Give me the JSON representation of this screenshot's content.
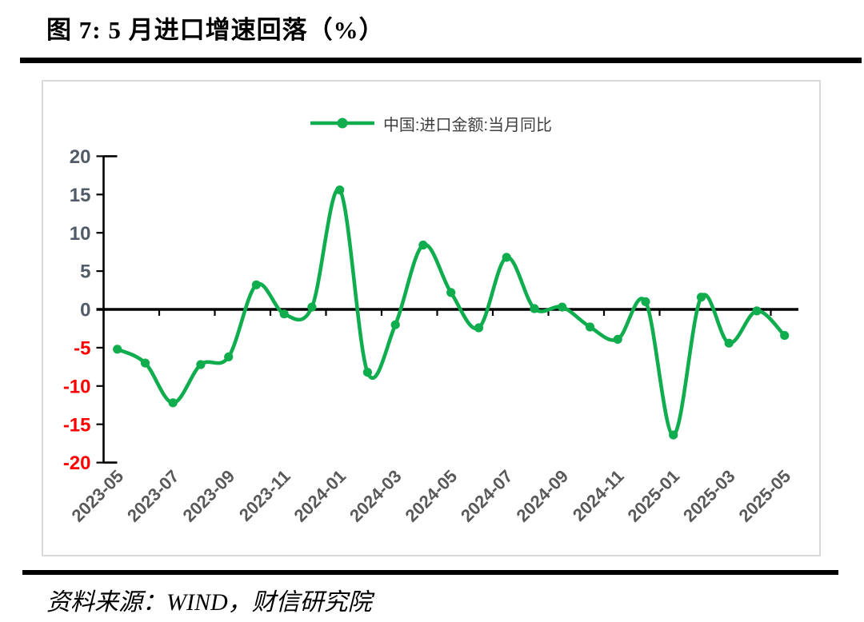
{
  "title": "图 7: 5 月进口增速回落（%）",
  "source": "资料来源：WIND，财信研究院",
  "legend": {
    "label": "中国:进口金额:当月同比"
  },
  "colors": {
    "series_green": "#10ad4f",
    "axis_black": "#000000",
    "ytick_positive": "#525c69",
    "ytick_negative": "#ff0000",
    "xtick_label": "#595959",
    "legend_text": "#404040",
    "frame_border": "#d9d9d9"
  },
  "chart_data": {
    "type": "line",
    "smooth": true,
    "marker": "circle",
    "legend_position": "top-center",
    "grid": false,
    "title": "图 7: 5 月进口增速回落（%）",
    "xlabel": "",
    "ylabel": "",
    "ylim": [
      -20,
      20
    ],
    "ytick_step": 5,
    "ytick_values": [
      20,
      15,
      10,
      5,
      0,
      -5,
      -10,
      -15,
      -20
    ],
    "ytick_labels": [
      "20",
      "15",
      "10",
      "5",
      "0",
      "-5",
      "-10",
      "-15",
      "-20"
    ],
    "x_label_interval": 2,
    "xtick_labels": [
      "2023-05",
      "2023-07",
      "2023-09",
      "2023-11",
      "2024-01",
      "2024-03",
      "2024-05",
      "2024-07",
      "2024-09",
      "2024-11",
      "2025-01",
      "2025-03",
      "2025-05"
    ],
    "x": [
      "2023-05",
      "2023-06",
      "2023-07",
      "2023-08",
      "2023-09",
      "2023-10",
      "2023-11",
      "2023-12",
      "2024-01",
      "2024-02",
      "2024-03",
      "2024-04",
      "2024-05",
      "2024-06",
      "2024-07",
      "2024-08",
      "2024-09",
      "2024-10",
      "2024-11",
      "2024-12",
      "2025-01",
      "2025-02",
      "2025-03",
      "2025-04",
      "2025-05"
    ],
    "series": [
      {
        "name": "中国:进口金额:当月同比",
        "values": [
          -5.2,
          -7.0,
          -12.2,
          -7.2,
          -6.2,
          3.2,
          -0.6,
          0.3,
          15.6,
          -8.2,
          -2.0,
          8.4,
          2.2,
          -2.4,
          6.8,
          0.1,
          0.3,
          -2.3,
          -3.9,
          1.0,
          -16.4,
          1.6,
          -4.4,
          -0.2,
          -3.4
        ]
      }
    ]
  }
}
